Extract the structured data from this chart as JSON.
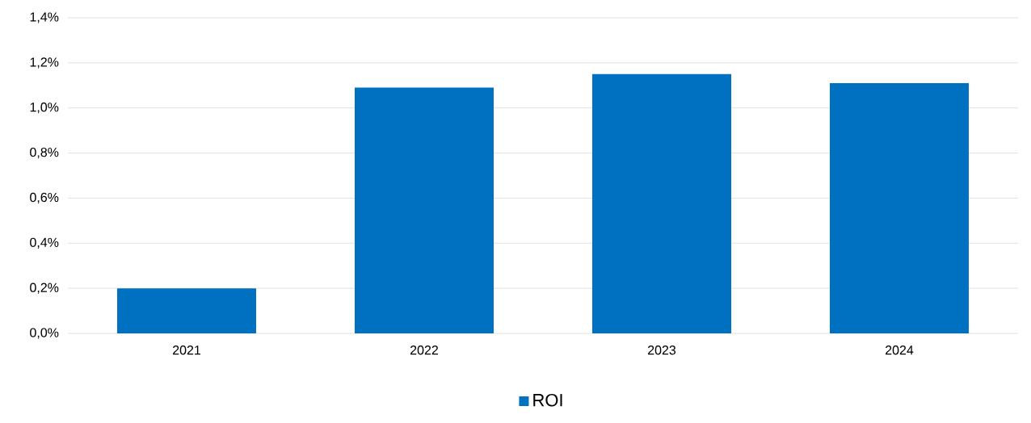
{
  "chart_data": {
    "type": "bar",
    "categories": [
      "2021",
      "2022",
      "2023",
      "2024"
    ],
    "series": [
      {
        "name": "ROI",
        "color": "#0070c0",
        "values": [
          0.2,
          1.09,
          1.15,
          1.11
        ]
      }
    ],
    "ylim": [
      0,
      1.4
    ],
    "yticks": [
      {
        "value": 0,
        "label": "0,0%"
      },
      {
        "value": 0.2,
        "label": "0,2%"
      },
      {
        "value": 0.4,
        "label": "0,4%"
      },
      {
        "value": 0.6,
        "label": "0,6%"
      },
      {
        "value": 0.8,
        "label": "0,8%"
      },
      {
        "value": 1.0,
        "label": "1,0%"
      },
      {
        "value": 1.2,
        "label": "1,2%"
      },
      {
        "value": 1.4,
        "label": "1,4%"
      }
    ],
    "grid": "y",
    "legend": "bottom"
  }
}
